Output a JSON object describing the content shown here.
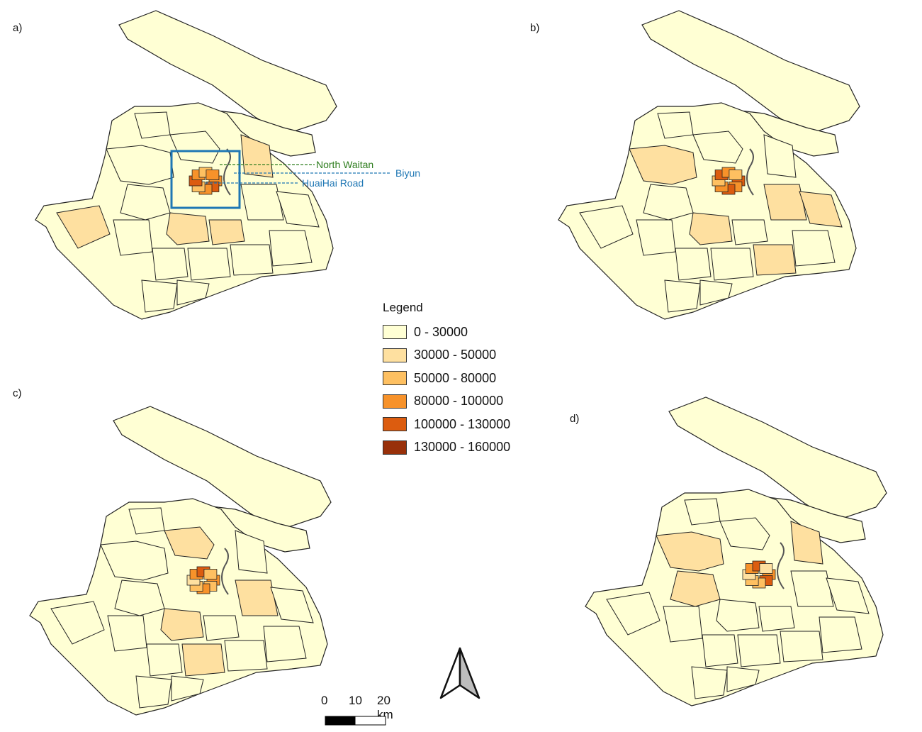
{
  "panels": [
    {
      "label": "a)",
      "fill_scheme": "a"
    },
    {
      "label": "b)",
      "fill_scheme": "b"
    },
    {
      "label": "c)",
      "fill_scheme": "c"
    },
    {
      "label": "d)",
      "fill_scheme": "d"
    }
  ],
  "annotations": {
    "north_waitan": "North Waitan",
    "biyun": "Biyun",
    "huaihai": "HuaiHai Road",
    "north_waitan_color": "#2e7d1e",
    "blue_color": "#1f77b4"
  },
  "legend": {
    "title": "Legend",
    "items": [
      {
        "label": "0 - 30000",
        "color": "#ffffd4"
      },
      {
        "label": "30000 - 50000",
        "color": "#fee0a0"
      },
      {
        "label": "50000 - 80000",
        "color": "#fec061"
      },
      {
        "label": "80000 - 100000",
        "color": "#f7922a"
      },
      {
        "label": "100000 - 130000",
        "color": "#dc5c0f"
      },
      {
        "label": "130000 - 160000",
        "color": "#98300a"
      }
    ]
  },
  "scale_bar": {
    "tick_0": "0",
    "tick_1": "10",
    "tick_2": "20 km"
  },
  "north_arrow": {
    "icon": "north-arrow-icon"
  }
}
